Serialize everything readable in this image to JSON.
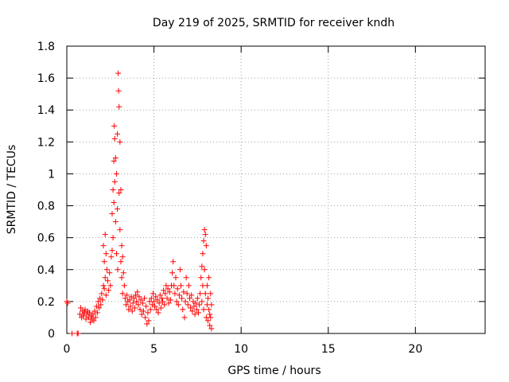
{
  "chart_data": {
    "type": "scatter",
    "title": "Day 219 of 2025, SRMTID for receiver kndh",
    "xlabel": "GPS time / hours",
    "ylabel": "SRMTID / TECUs",
    "xlim": [
      0,
      24
    ],
    "ylim": [
      0,
      1.8
    ],
    "xticks": [
      0,
      5,
      10,
      15,
      20
    ],
    "yticks": [
      0,
      0.2,
      0.4,
      0.6,
      0.8,
      1,
      1.2,
      1.4,
      1.6,
      1.8
    ],
    "ytick_labels": [
      "0",
      "0.2",
      "0.4",
      "0.6",
      "0.8",
      "1",
      "1.2",
      "1.4",
      "1.6",
      "1.8"
    ],
    "marker": "plus",
    "color": "#ff0000",
    "grid": true,
    "series": [
      {
        "name": "SRMTID",
        "points": [
          [
            0.0,
            0.2
          ],
          [
            0.05,
            0.19
          ],
          [
            0.3,
            0.0
          ],
          [
            0.6,
            0.0
          ],
          [
            0.65,
            0.0
          ],
          [
            0.75,
            0.12
          ],
          [
            0.8,
            0.16
          ],
          [
            0.85,
            0.1
          ],
          [
            0.9,
            0.14
          ],
          [
            0.95,
            0.11
          ],
          [
            1.0,
            0.13
          ],
          [
            1.05,
            0.15
          ],
          [
            1.1,
            0.09
          ],
          [
            1.15,
            0.12
          ],
          [
            1.2,
            0.14
          ],
          [
            1.25,
            0.1
          ],
          [
            1.3,
            0.13
          ],
          [
            1.35,
            0.07
          ],
          [
            1.4,
            0.11
          ],
          [
            1.45,
            0.09
          ],
          [
            1.5,
            0.12
          ],
          [
            1.55,
            0.08
          ],
          [
            1.6,
            0.14
          ],
          [
            1.65,
            0.1
          ],
          [
            1.7,
            0.17
          ],
          [
            1.75,
            0.13
          ],
          [
            1.8,
            0.2
          ],
          [
            1.85,
            0.16
          ],
          [
            1.9,
            0.22
          ],
          [
            1.95,
            0.18
          ],
          [
            2.0,
            0.25
          ],
          [
            2.05,
            0.21
          ],
          [
            2.1,
            0.3
          ],
          [
            2.1,
            0.55
          ],
          [
            2.15,
            0.45
          ],
          [
            2.15,
            0.28
          ],
          [
            2.2,
            0.62
          ],
          [
            2.2,
            0.35
          ],
          [
            2.25,
            0.5
          ],
          [
            2.25,
            0.24
          ],
          [
            2.3,
            0.4
          ],
          [
            2.35,
            0.33
          ],
          [
            2.4,
            0.27
          ],
          [
            2.45,
            0.38
          ],
          [
            2.5,
            0.3
          ],
          [
            2.55,
            0.48
          ],
          [
            2.6,
            0.52
          ],
          [
            2.6,
            0.75
          ],
          [
            2.65,
            0.9
          ],
          [
            2.65,
            0.6
          ],
          [
            2.7,
            1.08
          ],
          [
            2.7,
            0.82
          ],
          [
            2.72,
            1.3
          ],
          [
            2.75,
            1.22
          ],
          [
            2.75,
            0.95
          ],
          [
            2.8,
            1.1
          ],
          [
            2.8,
            0.7
          ],
          [
            2.85,
            1.0
          ],
          [
            2.85,
            0.5
          ],
          [
            2.9,
            1.25
          ],
          [
            2.9,
            0.78
          ],
          [
            2.92,
            0.4
          ],
          [
            2.95,
            1.63
          ],
          [
            2.97,
            1.52
          ],
          [
            3.0,
            1.42
          ],
          [
            3.0,
            0.88
          ],
          [
            3.05,
            0.65
          ],
          [
            3.05,
            1.2
          ],
          [
            3.1,
            0.9
          ],
          [
            3.1,
            0.45
          ],
          [
            3.15,
            0.55
          ],
          [
            3.15,
            0.35
          ],
          [
            3.2,
            0.48
          ],
          [
            3.2,
            0.25
          ],
          [
            3.25,
            0.38
          ],
          [
            3.3,
            0.3
          ],
          [
            3.35,
            0.22
          ],
          [
            3.4,
            0.18
          ],
          [
            3.45,
            0.24
          ],
          [
            3.5,
            0.2
          ],
          [
            3.55,
            0.15
          ],
          [
            3.6,
            0.21
          ],
          [
            3.65,
            0.17
          ],
          [
            3.7,
            0.23
          ],
          [
            3.75,
            0.14
          ],
          [
            3.8,
            0.19
          ],
          [
            3.85,
            0.22
          ],
          [
            3.9,
            0.16
          ],
          [
            3.95,
            0.24
          ],
          [
            4.0,
            0.2
          ],
          [
            4.05,
            0.26
          ],
          [
            4.1,
            0.18
          ],
          [
            4.15,
            0.23
          ],
          [
            4.2,
            0.15
          ],
          [
            4.25,
            0.21
          ],
          [
            4.3,
            0.12
          ],
          [
            4.35,
            0.19
          ],
          [
            4.4,
            0.14
          ],
          [
            4.45,
            0.22
          ],
          [
            4.5,
            0.1
          ],
          [
            4.55,
            0.17
          ],
          [
            4.6,
            0.06
          ],
          [
            4.65,
            0.13
          ],
          [
            4.7,
            0.08
          ],
          [
            4.75,
            0.2
          ],
          [
            4.8,
            0.15
          ],
          [
            4.85,
            0.22
          ],
          [
            4.9,
            0.18
          ],
          [
            4.95,
            0.25
          ],
          [
            5.0,
            0.2
          ],
          [
            5.05,
            0.17
          ],
          [
            5.1,
            0.23
          ],
          [
            5.15,
            0.15
          ],
          [
            5.2,
            0.21
          ],
          [
            5.25,
            0.13
          ],
          [
            5.3,
            0.19
          ],
          [
            5.35,
            0.24
          ],
          [
            5.4,
            0.16
          ],
          [
            5.45,
            0.22
          ],
          [
            5.5,
            0.2
          ],
          [
            5.55,
            0.27
          ],
          [
            5.6,
            0.18
          ],
          [
            5.65,
            0.25
          ],
          [
            5.7,
            0.3
          ],
          [
            5.75,
            0.22
          ],
          [
            5.8,
            0.28
          ],
          [
            5.85,
            0.19
          ],
          [
            5.9,
            0.26
          ],
          [
            5.95,
            0.21
          ],
          [
            6.0,
            0.3
          ],
          [
            6.05,
            0.38
          ],
          [
            6.1,
            0.45
          ],
          [
            6.15,
            0.3
          ],
          [
            6.2,
            0.25
          ],
          [
            6.25,
            0.35
          ],
          [
            6.3,
            0.2
          ],
          [
            6.35,
            0.28
          ],
          [
            6.4,
            0.18
          ],
          [
            6.45,
            0.24
          ],
          [
            6.5,
            0.4
          ],
          [
            6.55,
            0.3
          ],
          [
            6.6,
            0.22
          ],
          [
            6.65,
            0.15
          ],
          [
            6.7,
            0.26
          ],
          [
            6.75,
            0.1
          ],
          [
            6.8,
            0.2
          ],
          [
            6.85,
            0.35
          ],
          [
            6.9,
            0.25
          ],
          [
            6.95,
            0.18
          ],
          [
            7.0,
            0.3
          ],
          [
            7.05,
            0.22
          ],
          [
            7.1,
            0.16
          ],
          [
            7.15,
            0.24
          ],
          [
            7.2,
            0.14
          ],
          [
            7.25,
            0.2
          ],
          [
            7.3,
            0.17
          ],
          [
            7.35,
            0.12
          ],
          [
            7.4,
            0.19
          ],
          [
            7.45,
            0.15
          ],
          [
            7.5,
            0.22
          ],
          [
            7.55,
            0.13
          ],
          [
            7.6,
            0.18
          ],
          [
            7.65,
            0.25
          ],
          [
            7.7,
            0.35
          ],
          [
            7.75,
            0.42
          ],
          [
            7.75,
            0.2
          ],
          [
            7.8,
            0.5
          ],
          [
            7.8,
            0.3
          ],
          [
            7.85,
            0.58
          ],
          [
            7.85,
            0.15
          ],
          [
            7.9,
            0.65
          ],
          [
            7.9,
            0.4
          ],
          [
            7.95,
            0.62
          ],
          [
            7.95,
            0.25
          ],
          [
            8.0,
            0.55
          ],
          [
            8.0,
            0.1
          ],
          [
            8.05,
            0.3
          ],
          [
            8.05,
            0.18
          ],
          [
            8.1,
            0.22
          ],
          [
            8.1,
            0.08
          ],
          [
            8.15,
            0.15
          ],
          [
            8.15,
            0.35
          ],
          [
            8.2,
            0.05
          ],
          [
            8.2,
            0.12
          ],
          [
            8.25,
            0.25
          ],
          [
            8.25,
            0.1
          ],
          [
            8.3,
            0.03
          ],
          [
            8.3,
            0.18
          ]
        ]
      }
    ]
  }
}
